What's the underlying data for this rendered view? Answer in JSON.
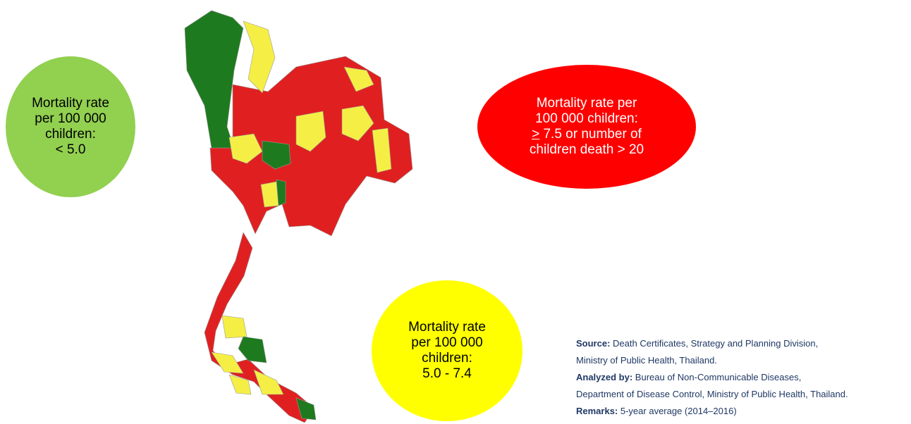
{
  "legend": [
    {
      "color": "#92d050",
      "text_color": "#000000",
      "lines": [
        [
          "Mortality rate"
        ],
        [
          "per 100 000"
        ],
        [
          "children:"
        ],
        [
          "< 5.0"
        ]
      ]
    },
    {
      "color": "#ff0000",
      "text_color": "#ffffff",
      "lines": [
        [
          "Mortality rate per"
        ],
        [
          "100 000 children:"
        ],
        [
          ">",
          " 7.5 or number of"
        ],
        [
          "children death > 20"
        ]
      ]
    },
    {
      "color": "#ffff00",
      "text_color": "#000000",
      "lines": [
        [
          "Mortality rate"
        ],
        [
          "per 100 000"
        ],
        [
          "children:"
        ],
        [
          "5.0 - 7.4"
        ]
      ]
    }
  ],
  "notes": [
    {
      "label": "Source:",
      "text": " Death Certificates, Strategy and Planning Division,"
    },
    {
      "text": "Ministry of Public Health, Thailand."
    },
    {
      "label": "Analyzed by:",
      "text": " Bureau of Non-Communicable Diseases,"
    },
    {
      "text": "Department of Disease Control, Ministry of Public Health, Thailand."
    },
    {
      "label": "Remarks:",
      "text": " 5-year average (2014–2016)"
    }
  ]
}
